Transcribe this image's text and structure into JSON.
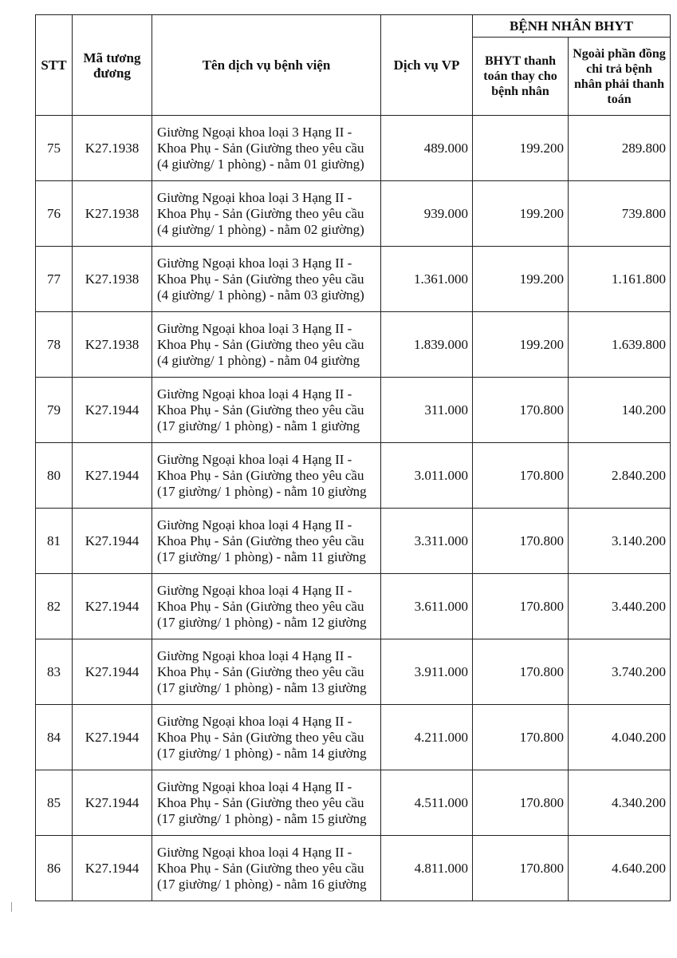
{
  "header": {
    "stt": "STT",
    "code": "Mã tương đương",
    "name": "Tên dịch vụ bệnh viện",
    "vp": "Dịch vụ VP",
    "group": "BỆNH NHÂN BHYT",
    "bhyt_pay": "BHYT thanh toán thay cho bệnh nhân",
    "patient_pay": "Ngoài phần đồng chi trả bệnh nhân phải thanh toán"
  },
  "rows": [
    {
      "stt": "75",
      "code": "K27.1938",
      "name": "Giường Ngoại khoa loại 3 Hạng II - Khoa Phụ - Sản (Giường theo yêu cầu (4 giường/ 1 phòng) - nằm 01 giường)",
      "vp": "489.000",
      "bhyt": "199.200",
      "patient": "289.800"
    },
    {
      "stt": "76",
      "code": "K27.1938",
      "name": "Giường Ngoại khoa loại 3 Hạng II - Khoa Phụ - Sản (Giường theo yêu cầu (4 giường/ 1 phòng) - nằm 02 giường)",
      "vp": "939.000",
      "bhyt": "199.200",
      "patient": "739.800"
    },
    {
      "stt": "77",
      "code": "K27.1938",
      "name": "Giường Ngoại khoa loại 3 Hạng II - Khoa Phụ - Sản (Giường theo yêu cầu (4 giường/ 1 phòng) - nằm 03 giường)",
      "vp": "1.361.000",
      "bhyt": "199.200",
      "patient": "1.161.800"
    },
    {
      "stt": "78",
      "code": "K27.1938",
      "name": "Giường Ngoại khoa loại 3 Hạng II - Khoa Phụ - Sản (Giường theo yêu cầu (4 giường/ 1 phòng) - nằm 04 giường",
      "vp": "1.839.000",
      "bhyt": "199.200",
      "patient": "1.639.800"
    },
    {
      "stt": "79",
      "code": "K27.1944",
      "name": "Giường Ngoại khoa loại 4 Hạng II - Khoa Phụ - Sản (Giường theo yêu cầu (17 giường/ 1 phòng) - nằm 1 giường",
      "vp": "311.000",
      "bhyt": "170.800",
      "patient": "140.200"
    },
    {
      "stt": "80",
      "code": "K27.1944",
      "name": "Giường Ngoại khoa loại 4 Hạng II - Khoa Phụ - Sản (Giường theo yêu cầu (17 giường/ 1 phòng) - nằm 10 giường",
      "vp": "3.011.000",
      "bhyt": "170.800",
      "patient": "2.840.200"
    },
    {
      "stt": "81",
      "code": "K27.1944",
      "name": "Giường Ngoại khoa loại 4 Hạng II - Khoa Phụ - Sản (Giường theo yêu cầu (17 giường/ 1 phòng) - nằm 11 giường",
      "vp": "3.311.000",
      "bhyt": "170.800",
      "patient": "3.140.200"
    },
    {
      "stt": "82",
      "code": "K27.1944",
      "name": "Giường Ngoại khoa loại 4 Hạng II - Khoa Phụ - Sản (Giường theo yêu cầu (17 giường/ 1 phòng) - nằm 12 giường",
      "vp": "3.611.000",
      "bhyt": "170.800",
      "patient": "3.440.200"
    },
    {
      "stt": "83",
      "code": "K27.1944",
      "name": "Giường Ngoại khoa loại 4 Hạng II - Khoa Phụ - Sản (Giường theo yêu cầu (17 giường/ 1 phòng) - nằm 13 giường",
      "vp": "3.911.000",
      "bhyt": "170.800",
      "patient": "3.740.200"
    },
    {
      "stt": "84",
      "code": "K27.1944",
      "name": "Giường Ngoại khoa loại 4 Hạng II - Khoa Phụ - Sản (Giường theo yêu cầu (17 giường/ 1 phòng) - nằm 14 giường",
      "vp": "4.211.000",
      "bhyt": "170.800",
      "patient": "4.040.200"
    },
    {
      "stt": "85",
      "code": "K27.1944",
      "name": "Giường Ngoại khoa loại 4 Hạng II - Khoa Phụ - Sản (Giường theo yêu cầu (17 giường/ 1 phòng) - nằm 15 giường",
      "vp": "4.511.000",
      "bhyt": "170.800",
      "patient": "4.340.200"
    },
    {
      "stt": "86",
      "code": "K27.1944",
      "name": "Giường Ngoại khoa loại 4 Hạng II - Khoa Phụ - Sản (Giường theo yêu cầu (17 giường/ 1 phòng) - nằm 16 giường",
      "vp": "4.811.000",
      "bhyt": "170.800",
      "patient": "4.640.200"
    }
  ]
}
